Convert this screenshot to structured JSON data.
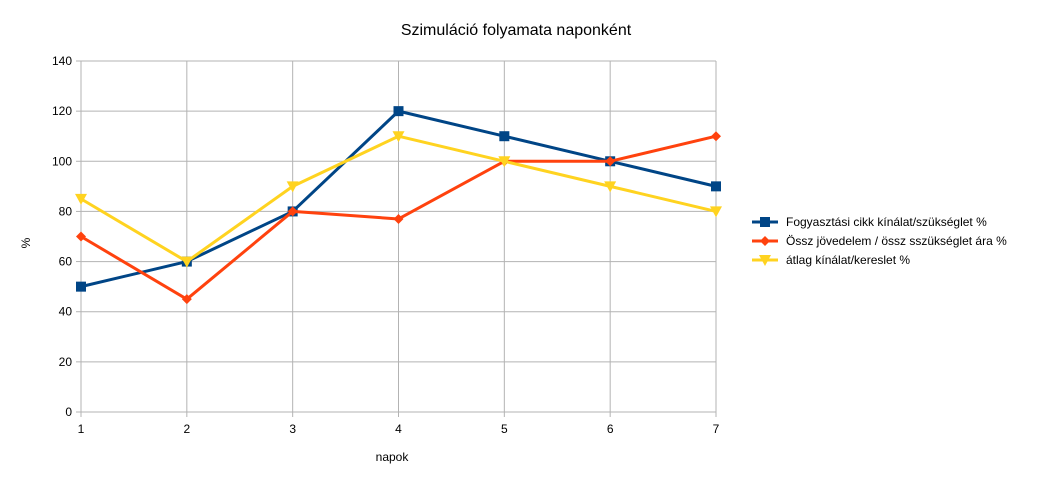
{
  "chart_data": {
    "type": "line",
    "title": "Szimuláció folyamata naponként",
    "xlabel": "napok",
    "ylabel": "%",
    "x": [
      1,
      2,
      3,
      4,
      5,
      6,
      7
    ],
    "ylim": [
      0,
      140
    ],
    "yticks": [
      0,
      20,
      40,
      60,
      80,
      100,
      120,
      140
    ],
    "grid": true,
    "legend_position": "right",
    "series": [
      {
        "name": "Fogyasztási cikk kínálat/szükséglet %",
        "values": [
          50,
          60,
          80,
          120,
          110,
          100,
          90
        ],
        "color": "#004586",
        "marker": "square"
      },
      {
        "name": "Össz jövedelem / össz sszükséglet ára %",
        "values": [
          70,
          45,
          80,
          77,
          100,
          100,
          110
        ],
        "color": "#ff420e",
        "marker": "diamond"
      },
      {
        "name": "átlag kínálat/kereslet %",
        "values": [
          85,
          60,
          90,
          110,
          100,
          90,
          80
        ],
        "color": "#ffd320",
        "marker": "triangle-down"
      }
    ]
  }
}
